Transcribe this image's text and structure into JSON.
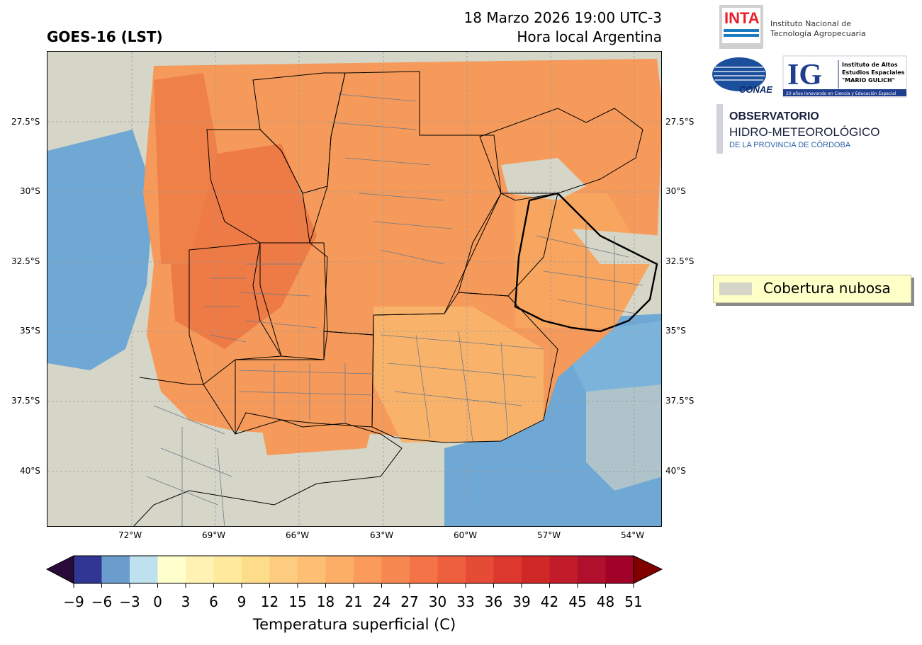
{
  "header": {
    "product_title": "GOES-16 (LST)",
    "datetime": "18 Marzo 2026 19:00 UTC-3",
    "local_note": "Hora local Argentina"
  },
  "map": {
    "lat_labels": [
      "27.5°S",
      "30°S",
      "32.5°S",
      "35°S",
      "37.5°S",
      "40°S"
    ],
    "lon_labels": [
      "72°W",
      "69°W",
      "66°W",
      "63°W",
      "60°W",
      "57°W",
      "54°W"
    ],
    "colors": {
      "cloud": "#d6d6c8",
      "ocean": "#6fa8d4",
      "warm_low": "#f8b26a",
      "warm_mid": "#f59a5a",
      "warm_high": "#ee7a45"
    }
  },
  "legend": {
    "label": "Cobertura nubosa"
  },
  "colorbar": {
    "label": "Temperatura superficial (C)",
    "ticks": [
      "−9",
      "−6",
      "−3",
      "0",
      "3",
      "6",
      "9",
      "12",
      "15",
      "18",
      "21",
      "24",
      "27",
      "30",
      "33",
      "36",
      "39",
      "42",
      "45",
      "48",
      "51"
    ],
    "colors": [
      "#313695",
      "#6a9ccd",
      "#bde1ee",
      "#ffffcc",
      "#fff2b2",
      "#fee99d",
      "#fedd8a",
      "#fdcc80",
      "#fdbf74",
      "#fcae67",
      "#fa9b5c",
      "#f88851",
      "#f47347",
      "#ee5f3e",
      "#e64b35",
      "#dc382e",
      "#d02727",
      "#c21b29",
      "#b0102b",
      "#a00327"
    ],
    "under_color": "#2a0a3a",
    "over_color": "#800000"
  },
  "logos": {
    "inta_mark": "INTA",
    "inta_name_1": "Instituto Nacional de",
    "inta_name_2": "Tecnología Agropecuaria",
    "conae_mark": "CONAE",
    "ig_mark": "IG",
    "ig_name_1": "Instituto de Altos",
    "ig_name_2": "Estudios Espaciales",
    "ig_name_3": "\"MARIO GULICH\"",
    "ig_tagline": "20 años innovando en Ciencia y Educación Espacial",
    "obs_line_1": "OBSERVATORIO",
    "obs_line_2": "HIDRO-METEOROLÓGICO",
    "obs_line_3": "DE LA PROVINCIA DE CÓRDOBA"
  }
}
